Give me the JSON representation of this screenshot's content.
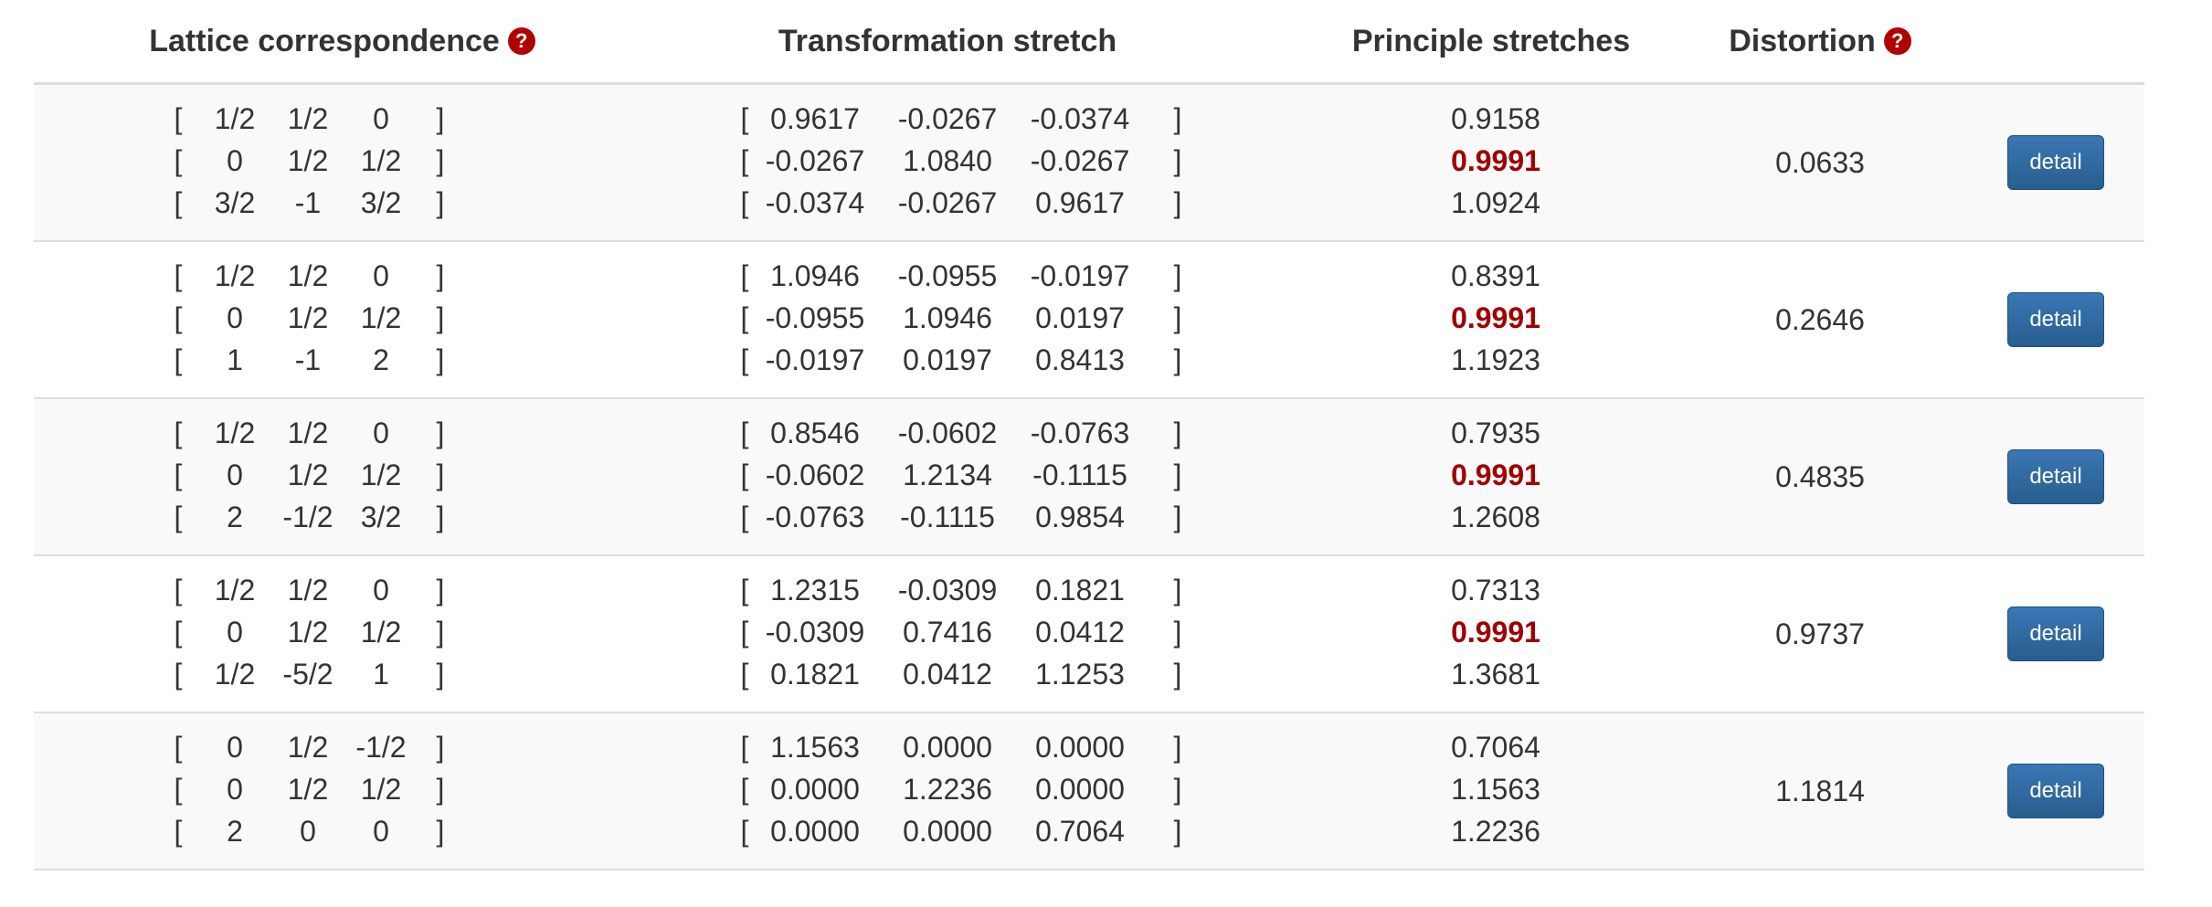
{
  "header": {
    "lattice": "Lattice correspondence",
    "stretch": "Transformation stretch",
    "principal": "Principle stretches",
    "distortion": "Distortion",
    "help_glyph": "?"
  },
  "bracket_open": "[",
  "bracket_close": "]",
  "accent_color": "#a00000",
  "button_color": "#337ab7",
  "rows": [
    {
      "lattice": [
        [
          "1/2",
          "1/2",
          "0"
        ],
        [
          "0",
          "1/2",
          "1/2"
        ],
        [
          "3/2",
          "-1",
          "3/2"
        ]
      ],
      "stretch": [
        [
          "0.9617",
          "-0.0267",
          "-0.0374"
        ],
        [
          "-0.0267",
          "1.0840",
          "-0.0267"
        ],
        [
          "-0.0374",
          "-0.0267",
          "0.9617"
        ]
      ],
      "principal": [
        "0.9158",
        "0.9991",
        "1.0924"
      ],
      "distortion": "0.0633",
      "button": "detail"
    },
    {
      "lattice": [
        [
          "1/2",
          "1/2",
          "0"
        ],
        [
          "0",
          "1/2",
          "1/2"
        ],
        [
          "1",
          "-1",
          "2"
        ]
      ],
      "stretch": [
        [
          "1.0946",
          "-0.0955",
          "-0.0197"
        ],
        [
          "-0.0955",
          "1.0946",
          "0.0197"
        ],
        [
          "-0.0197",
          "0.0197",
          "0.8413"
        ]
      ],
      "principal": [
        "0.8391",
        "0.9991",
        "1.1923"
      ],
      "distortion": "0.2646",
      "button": "detail"
    },
    {
      "lattice": [
        [
          "1/2",
          "1/2",
          "0"
        ],
        [
          "0",
          "1/2",
          "1/2"
        ],
        [
          "2",
          "-1/2",
          "3/2"
        ]
      ],
      "stretch": [
        [
          "0.8546",
          "-0.0602",
          "-0.0763"
        ],
        [
          "-0.0602",
          "1.2134",
          "-0.1115"
        ],
        [
          "-0.0763",
          "-0.1115",
          "0.9854"
        ]
      ],
      "principal": [
        "0.7935",
        "0.9991",
        "1.2608"
      ],
      "distortion": "0.4835",
      "button": "detail"
    },
    {
      "lattice": [
        [
          "1/2",
          "1/2",
          "0"
        ],
        [
          "0",
          "1/2",
          "1/2"
        ],
        [
          "1/2",
          "-5/2",
          "1"
        ]
      ],
      "stretch": [
        [
          "1.2315",
          "-0.0309",
          "0.1821"
        ],
        [
          "-0.0309",
          "0.7416",
          "0.0412"
        ],
        [
          "0.1821",
          "0.0412",
          "1.1253"
        ]
      ],
      "principal": [
        "0.7313",
        "0.9991",
        "1.3681"
      ],
      "distortion": "0.9737",
      "button": "detail"
    },
    {
      "lattice": [
        [
          "0",
          "1/2",
          "-1/2"
        ],
        [
          "0",
          "1/2",
          "1/2"
        ],
        [
          "2",
          "0",
          "0"
        ]
      ],
      "stretch": [
        [
          "1.1563",
          "0.0000",
          "0.0000"
        ],
        [
          "0.0000",
          "1.2236",
          "0.0000"
        ],
        [
          "0.0000",
          "0.0000",
          "0.7064"
        ]
      ],
      "principal": [
        "0.7064",
        "1.1563",
        "1.2236"
      ],
      "distortion": "1.1814",
      "button": "detail"
    }
  ]
}
